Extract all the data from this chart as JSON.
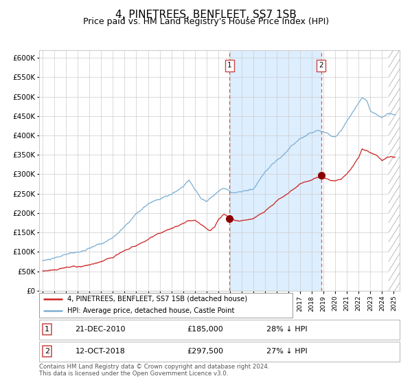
{
  "title": "4, PINETREES, BENFLEET, SS7 1SB",
  "subtitle": "Price paid vs. HM Land Registry's House Price Index (HPI)",
  "title_fontsize": 11,
  "subtitle_fontsize": 9,
  "ylabel_ticks": [
    "£0",
    "£50K",
    "£100K",
    "£150K",
    "£200K",
    "£250K",
    "£300K",
    "£350K",
    "£400K",
    "£450K",
    "£500K",
    "£550K",
    "£600K"
  ],
  "ytick_values": [
    0,
    50000,
    100000,
    150000,
    200000,
    250000,
    300000,
    350000,
    400000,
    450000,
    500000,
    550000,
    600000
  ],
  "ylim": [
    0,
    620000
  ],
  "xlim_start": 1994.7,
  "xlim_end": 2025.5,
  "hpi_line_color": "#7bafd4",
  "price_color": "#cc2222",
  "grid_color": "#cccccc",
  "bg_color": "#ffffff",
  "shaded_region_color": "#ddeeff",
  "marker1_x": 2010.97,
  "marker1_y": 185000,
  "marker2_x": 2018.79,
  "marker2_y": 297500,
  "vline1_x": 2010.97,
  "vline2_x": 2018.79,
  "legend_label1": "4, PINETREES, BENFLEET, SS7 1SB (detached house)",
  "legend_label2": "HPI: Average price, detached house, Castle Point",
  "table_row1": [
    "1",
    "21-DEC-2010",
    "£185,000",
    "28% ↓ HPI"
  ],
  "table_row2": [
    "2",
    "12-OCT-2018",
    "£297,500",
    "27% ↓ HPI"
  ],
  "footnote": "Contains HM Land Registry data © Crown copyright and database right 2024.\nThis data is licensed under the Open Government Licence v3.0."
}
